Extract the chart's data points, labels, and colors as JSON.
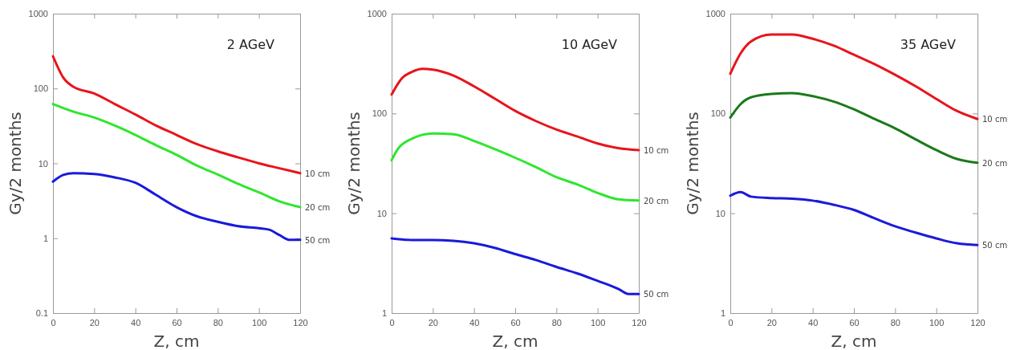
{
  "chart_data": [
    {
      "type": "line",
      "xlabel": "Z, cm",
      "ylabel": "Gy/2 months",
      "annotations": [
        "2 AGeV"
      ],
      "log": "y",
      "xlim": [
        0,
        120
      ],
      "xticks": [
        0,
        20,
        40,
        60,
        80,
        100,
        120
      ],
      "ylim": [
        0.1,
        1000
      ],
      "yticks": [
        0.1,
        1,
        10,
        100,
        1000
      ],
      "series": [
        {
          "name": "10 cm",
          "color": "#e8141b",
          "x": [
            0,
            5,
            10,
            20,
            30,
            40,
            50,
            60,
            70,
            80,
            90,
            100,
            110,
            120
          ],
          "values": [
            270,
            140,
            105,
            86,
            62,
            45,
            32,
            24,
            18,
            14.5,
            12,
            10,
            8.6,
            7.4
          ]
        },
        {
          "name": "20 cm",
          "color": "#2ee62e",
          "x": [
            0,
            10,
            20,
            30,
            40,
            50,
            60,
            70,
            80,
            90,
            100,
            110,
            120
          ],
          "values": [
            62,
            49,
            41,
            32,
            24,
            17.5,
            13,
            9.3,
            7.1,
            5.3,
            4.1,
            3.1,
            2.6
          ]
        },
        {
          "name": "50 cm",
          "color": "#1a1adc",
          "x": [
            0,
            5,
            10,
            20,
            30,
            40,
            50,
            60,
            70,
            80,
            90,
            100,
            105,
            110,
            115,
            120
          ],
          "values": [
            5.7,
            7.0,
            7.4,
            7.2,
            6.5,
            5.5,
            3.8,
            2.6,
            1.96,
            1.66,
            1.45,
            1.36,
            1.3,
            1.1,
            0.95,
            0.95
          ]
        }
      ]
    },
    {
      "type": "line",
      "xlabel": "Z, cm",
      "ylabel": "Gy/2 months",
      "annotations": [
        "10 AGeV"
      ],
      "log": "y",
      "xlim": [
        0,
        120
      ],
      "xticks": [
        0,
        20,
        40,
        60,
        80,
        100,
        120
      ],
      "ylim": [
        1,
        1000
      ],
      "yticks": [
        1,
        10,
        100,
        1000
      ],
      "series": [
        {
          "name": "10 cm",
          "color": "#e8141b",
          "x": [
            0,
            5,
            10,
            15,
            20,
            30,
            40,
            50,
            60,
            70,
            80,
            90,
            100,
            110,
            120
          ],
          "values": [
            155,
            225,
            262,
            280,
            275,
            240,
            187,
            141,
            106,
            84,
            69,
            59,
            50,
            45,
            43
          ]
        },
        {
          "name": "20 cm",
          "color": "#2ee62e",
          "x": [
            0,
            3,
            10,
            20,
            30,
            40,
            50,
            60,
            70,
            80,
            90,
            100,
            110,
            120
          ],
          "values": [
            34,
            44,
            56,
            63,
            62,
            53,
            44,
            36,
            29,
            23,
            19.5,
            16,
            13.8,
            13.4
          ]
        },
        {
          "name": "50 cm",
          "color": "#1a1adc",
          "x": [
            0,
            10,
            20,
            30,
            40,
            50,
            60,
            70,
            80,
            90,
            100,
            110,
            115,
            120
          ],
          "values": [
            5.6,
            5.4,
            5.4,
            5.3,
            5.0,
            4.5,
            3.9,
            3.4,
            2.9,
            2.5,
            2.1,
            1.75,
            1.55,
            1.55
          ]
        }
      ]
    },
    {
      "type": "line",
      "xlabel": "Z, cm",
      "ylabel": "Gy/2 months",
      "annotations": [
        "35 AGeV"
      ],
      "log": "y",
      "xlim": [
        0,
        120
      ],
      "xticks": [
        0,
        20,
        40,
        60,
        80,
        100,
        120
      ],
      "ylim": [
        1,
        1000
      ],
      "yticks": [
        1,
        10,
        100,
        1000
      ],
      "series": [
        {
          "name": "10 cm",
          "color": "#e8141b",
          "x": [
            0,
            5,
            10,
            20,
            30,
            40,
            50,
            60,
            70,
            80,
            90,
            100,
            110,
            120
          ],
          "values": [
            250,
            400,
            525,
            617,
            617,
            560,
            480,
            388,
            312,
            244,
            187,
            140,
            106,
            88
          ]
        },
        {
          "name": "20 cm",
          "color": "#1a7a1a",
          "x": [
            0,
            5,
            10,
            20,
            30,
            40,
            50,
            60,
            70,
            80,
            90,
            100,
            110,
            120
          ],
          "values": [
            91,
            124,
            145,
            157,
            160,
            149,
            132,
            110,
            88,
            71,
            55,
            43,
            35,
            32
          ]
        },
        {
          "name": "50 cm",
          "color": "#1a1adc",
          "x": [
            0,
            5,
            10,
            20,
            30,
            40,
            50,
            60,
            70,
            80,
            90,
            100,
            110,
            120
          ],
          "values": [
            15,
            16.3,
            14.7,
            14.2,
            14,
            13.4,
            12.2,
            10.8,
            8.9,
            7.4,
            6.4,
            5.6,
            5.0,
            4.8
          ]
        }
      ]
    }
  ]
}
